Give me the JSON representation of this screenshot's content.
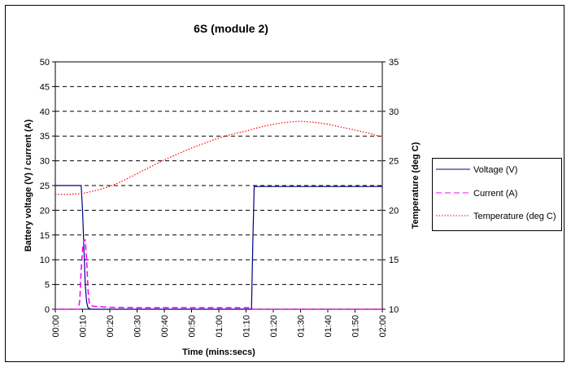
{
  "chart_data": {
    "type": "line",
    "title": "6S (module 2)",
    "xlabel": "Time (mins:secs)",
    "ylabel": "Battery voltage (V) / current (A)",
    "y2label": "Temperature (deg C)",
    "x_ticks": [
      "00:00",
      "00:10",
      "00:20",
      "00:30",
      "00:40",
      "00:50",
      "01:00",
      "01:10",
      "01:20",
      "01:30",
      "01:40",
      "01:50",
      "02:00"
    ],
    "xlim": [
      0,
      120
    ],
    "ylim": [
      0,
      50
    ],
    "y_ticks": [
      "0",
      "5",
      "10",
      "15",
      "20",
      "25",
      "30",
      "35",
      "40",
      "45",
      "50"
    ],
    "y2lim": [
      10,
      35
    ],
    "y2_ticks": [
      "10",
      "15",
      "20",
      "25",
      "30",
      "35"
    ],
    "grid": "horizontal dashed",
    "legend_position": "right",
    "series": [
      {
        "name": "Voltage (V)",
        "axis": "left",
        "color": "#000080",
        "style": "solid",
        "x": [
          0,
          9.5,
          10.0,
          10.5,
          11.0,
          11.5,
          12.0,
          13.0,
          72.0,
          72.5,
          73.0,
          120.0
        ],
        "y": [
          25.0,
          25.0,
          20.0,
          12.0,
          5.0,
          1.5,
          0.3,
          0.0,
          0.0,
          14.0,
          24.8,
          24.8
        ]
      },
      {
        "name": "Current (A)",
        "axis": "left",
        "color": "#ff00ff",
        "style": "dashed",
        "x": [
          0,
          8.5,
          9.0,
          9.5,
          10.0,
          10.5,
          11.0,
          11.5,
          12.0,
          12.5,
          13.0,
          14.0,
          20.0,
          30.0,
          40.0,
          60.0,
          72.0,
          72.5,
          120.0
        ],
        "y": [
          0.0,
          0.0,
          2.0,
          8.0,
          12.0,
          14.0,
          14.0,
          10.0,
          4.0,
          1.0,
          0.8,
          0.6,
          0.4,
          0.3,
          0.3,
          0.3,
          0.3,
          0.0,
          0.0
        ]
      },
      {
        "name": "Temperature (deg C)",
        "axis": "right",
        "color": "#ff0000",
        "style": "dotted",
        "x": [
          0,
          5,
          10,
          15,
          20,
          25,
          30,
          35,
          40,
          45,
          50,
          55,
          60,
          65,
          70,
          75,
          80,
          85,
          90,
          95,
          100,
          105,
          110,
          115,
          120
        ],
        "y": [
          21.6,
          21.6,
          21.7,
          22.0,
          22.4,
          23.0,
          23.7,
          24.4,
          25.1,
          25.7,
          26.3,
          26.8,
          27.3,
          27.7,
          28.0,
          28.4,
          28.7,
          28.9,
          29.0,
          28.9,
          28.7,
          28.4,
          28.1,
          27.8,
          27.4
        ]
      }
    ]
  }
}
